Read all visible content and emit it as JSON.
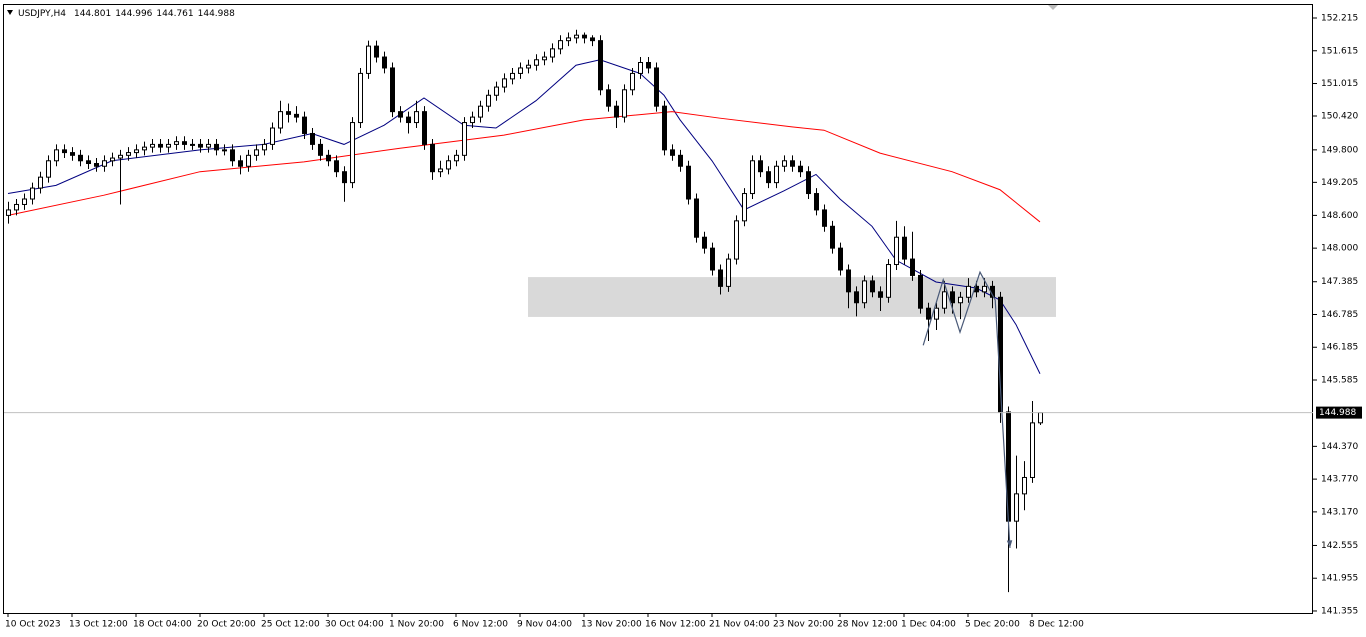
{
  "chart_data": {
    "type": "candlestick",
    "symbol": "USDJPY,H4",
    "ylim": [
      141.318,
      152.453
    ],
    "yticks": [
      152.215,
      151.615,
      151.015,
      {
        "value": 150.42,
        "label": "150.420"
      },
      {
        "value": 149.8,
        "label": "149.800"
      },
      149.205,
      {
        "value": 148.6,
        "label": "148.600"
      },
      {
        "value": 148,
        "label": "148.000"
      },
      147.385,
      146.785,
      146.185,
      145.585,
      {
        "value": 144.37,
        "label": "144.370"
      },
      {
        "value": 143.77,
        "label": "143.770"
      },
      {
        "value": 143.17,
        "label": "143.170"
      },
      142.555,
      141.955,
      141.355
    ],
    "categories": [
      "10 Oct 2023",
      "13 Oct 12:00",
      "18 Oct 04:00",
      "20 Oct 20:00",
      "25 Oct 12:00",
      "30 Oct 04:00",
      "1 Nov 20:00",
      "6 Nov 12:00",
      "9 Nov 04:00",
      "13 Nov 20:00",
      "16 Nov 12:00",
      "21 Nov 04:00",
      "23 Nov 20:00",
      "28 Nov 12:00",
      "1 Dec 04:00",
      "5 Dec 20:00",
      "8 Dec 12:00"
    ],
    "bull_color": "#ffffff",
    "bear_color": "#000000",
    "candles": [
      [
        148.6,
        148.85,
        148.45,
        148.7
      ],
      [
        148.7,
        148.9,
        148.6,
        148.8
      ],
      [
        148.8,
        149.0,
        148.7,
        148.9
      ],
      [
        148.9,
        149.2,
        148.8,
        149.1
      ],
      [
        149.1,
        149.4,
        149.0,
        149.3
      ],
      [
        149.3,
        149.7,
        149.2,
        149.6
      ],
      [
        149.6,
        149.9,
        149.5,
        149.8
      ],
      [
        149.8,
        149.9,
        149.65,
        149.75
      ],
      [
        149.75,
        149.85,
        149.6,
        149.7
      ],
      [
        149.7,
        149.8,
        149.5,
        149.6
      ],
      [
        149.6,
        149.7,
        149.45,
        149.55
      ],
      [
        149.55,
        149.65,
        149.4,
        149.5
      ],
      [
        149.5,
        149.7,
        149.4,
        149.6
      ],
      [
        149.6,
        149.75,
        149.5,
        149.65
      ],
      [
        149.65,
        149.8,
        148.8,
        149.7
      ],
      [
        149.7,
        149.85,
        149.6,
        149.75
      ],
      [
        149.75,
        149.9,
        149.65,
        149.8
      ],
      [
        149.8,
        149.95,
        149.7,
        149.85
      ],
      [
        149.85,
        150.0,
        149.75,
        149.9
      ],
      [
        149.9,
        150.0,
        149.75,
        149.85
      ],
      [
        149.85,
        150.0,
        149.75,
        149.9
      ],
      [
        149.9,
        150.05,
        149.8,
        149.95
      ],
      [
        149.95,
        150.05,
        149.8,
        149.9
      ],
      [
        149.9,
        150.0,
        149.8,
        149.9
      ],
      [
        149.9,
        150.0,
        149.75,
        149.85
      ],
      [
        149.85,
        150.0,
        149.75,
        149.9
      ],
      [
        149.9,
        150.0,
        149.7,
        149.8
      ],
      [
        149.8,
        149.9,
        149.7,
        149.8
      ],
      [
        149.8,
        149.9,
        149.5,
        149.6
      ],
      [
        149.6,
        149.7,
        149.35,
        149.5
      ],
      [
        149.5,
        149.8,
        149.4,
        149.7
      ],
      [
        149.7,
        149.9,
        149.6,
        149.8
      ],
      [
        149.8,
        150.0,
        149.7,
        149.9
      ],
      [
        149.9,
        150.3,
        149.8,
        150.2
      ],
      [
        150.2,
        150.7,
        150.1,
        150.5
      ],
      [
        150.5,
        150.65,
        150.3,
        150.45
      ],
      [
        150.45,
        150.6,
        150.3,
        150.4
      ],
      [
        150.4,
        150.5,
        150.0,
        150.1
      ],
      [
        150.1,
        150.2,
        149.8,
        149.9
      ],
      [
        149.9,
        150.0,
        149.6,
        149.7
      ],
      [
        149.7,
        149.8,
        149.5,
        149.6
      ],
      [
        149.6,
        149.7,
        149.3,
        149.4
      ],
      [
        149.4,
        149.5,
        148.85,
        149.2
      ],
      [
        149.2,
        150.4,
        149.1,
        150.3
      ],
      [
        150.3,
        151.3,
        150.2,
        151.2
      ],
      [
        151.2,
        151.8,
        151.1,
        151.7
      ],
      [
        151.7,
        151.8,
        151.4,
        151.5
      ],
      [
        151.5,
        151.6,
        151.2,
        151.3
      ],
      [
        151.3,
        151.4,
        150.4,
        150.5
      ],
      [
        150.5,
        150.6,
        150.3,
        150.4
      ],
      [
        150.4,
        150.5,
        150.1,
        150.3
      ],
      [
        150.3,
        150.7,
        150.2,
        150.5
      ],
      [
        150.5,
        150.6,
        149.8,
        149.9
      ],
      [
        149.9,
        150.0,
        149.25,
        149.4
      ],
      [
        149.4,
        149.6,
        149.3,
        149.45
      ],
      [
        149.45,
        149.7,
        149.35,
        149.6
      ],
      [
        149.6,
        149.8,
        149.5,
        149.7
      ],
      [
        149.7,
        150.4,
        149.6,
        150.3
      ],
      [
        150.3,
        150.5,
        150.2,
        150.4
      ],
      [
        150.4,
        150.7,
        150.3,
        150.6
      ],
      [
        150.6,
        150.9,
        150.5,
        150.8
      ],
      [
        150.8,
        151.05,
        150.7,
        150.95
      ],
      [
        150.95,
        151.2,
        150.85,
        151.1
      ],
      [
        151.1,
        151.3,
        151.0,
        151.2
      ],
      [
        151.2,
        151.4,
        151.1,
        151.3
      ],
      [
        151.3,
        151.45,
        151.2,
        151.35
      ],
      [
        151.35,
        151.55,
        151.25,
        151.45
      ],
      [
        151.45,
        151.6,
        151.35,
        151.5
      ],
      [
        151.5,
        151.75,
        151.4,
        151.65
      ],
      [
        151.65,
        151.9,
        151.55,
        151.8
      ],
      [
        151.8,
        151.95,
        151.7,
        151.85
      ],
      [
        151.85,
        152.0,
        151.75,
        151.9
      ],
      [
        151.9,
        151.95,
        151.75,
        151.85
      ],
      [
        151.85,
        151.9,
        151.7,
        151.8
      ],
      [
        151.8,
        151.9,
        150.8,
        150.9
      ],
      [
        150.9,
        151.0,
        150.5,
        150.6
      ],
      [
        150.6,
        150.7,
        150.2,
        150.4
      ],
      [
        150.4,
        151.0,
        150.3,
        150.9
      ],
      [
        150.9,
        151.3,
        150.8,
        151.2
      ],
      [
        151.2,
        151.5,
        151.1,
        151.4
      ],
      [
        151.4,
        151.5,
        151.2,
        151.3
      ],
      [
        151.3,
        151.4,
        150.5,
        150.6
      ],
      [
        150.6,
        150.7,
        149.7,
        149.8
      ],
      [
        149.8,
        149.9,
        149.6,
        149.7
      ],
      [
        149.7,
        149.8,
        149.4,
        149.5
      ],
      [
        149.5,
        149.6,
        148.8,
        148.9
      ],
      [
        148.9,
        149.0,
        148.1,
        148.2
      ],
      [
        148.2,
        148.3,
        147.9,
        148.0
      ],
      [
        148.0,
        148.1,
        147.5,
        147.6
      ],
      [
        147.6,
        147.7,
        147.15,
        147.3
      ],
      [
        147.3,
        147.9,
        147.2,
        147.8
      ],
      [
        147.8,
        148.6,
        147.7,
        148.5
      ],
      [
        148.5,
        149.1,
        148.4,
        149.0
      ],
      [
        149.0,
        149.7,
        148.9,
        149.6
      ],
      [
        149.6,
        149.7,
        149.3,
        149.4
      ],
      [
        149.4,
        149.5,
        149.1,
        149.2
      ],
      [
        149.2,
        149.6,
        149.1,
        149.5
      ],
      [
        149.5,
        149.7,
        149.4,
        149.6
      ],
      [
        149.6,
        149.7,
        149.4,
        149.5
      ],
      [
        149.5,
        149.6,
        149.3,
        149.4
      ],
      [
        149.4,
        149.5,
        148.9,
        149.0
      ],
      [
        149.0,
        149.1,
        148.6,
        148.7
      ],
      [
        148.7,
        148.8,
        148.3,
        148.4
      ],
      [
        148.4,
        148.5,
        147.9,
        148.0
      ],
      [
        148.0,
        148.1,
        147.5,
        147.6
      ],
      [
        147.6,
        147.7,
        146.9,
        147.2
      ],
      [
        147.2,
        147.3,
        146.75,
        147.0
      ],
      [
        147.0,
        147.5,
        146.9,
        147.4
      ],
      [
        147.4,
        147.5,
        147.1,
        147.2
      ],
      [
        147.2,
        147.3,
        146.85,
        147.1
      ],
      [
        147.1,
        147.8,
        147.0,
        147.7
      ],
      [
        147.7,
        148.5,
        147.6,
        148.2
      ],
      [
        148.2,
        148.4,
        147.7,
        147.8
      ],
      [
        147.8,
        148.3,
        147.4,
        147.5
      ],
      [
        147.5,
        147.6,
        146.8,
        146.9
      ],
      [
        146.9,
        147.0,
        146.3,
        146.7
      ],
      [
        146.7,
        147.0,
        146.5,
        146.9
      ],
      [
        146.9,
        147.4,
        146.8,
        147.2
      ],
      [
        147.2,
        147.3,
        146.8,
        147.0
      ],
      [
        147.0,
        147.2,
        146.7,
        147.1
      ],
      [
        147.1,
        147.45,
        147.0,
        147.3
      ],
      [
        147.3,
        147.4,
        147.1,
        147.2
      ],
      [
        147.2,
        147.45,
        147.1,
        147.3
      ],
      [
        147.3,
        147.4,
        146.9,
        147.1
      ],
      [
        147.1,
        147.2,
        144.8,
        145.0
      ],
      [
        145.0,
        145.1,
        141.7,
        143.0
      ],
      [
        143.0,
        144.2,
        142.5,
        143.5
      ],
      [
        143.5,
        144.1,
        143.2,
        143.8
      ],
      [
        143.8,
        145.2,
        143.7,
        144.8
      ],
      [
        144.801,
        144.996,
        144.761,
        144.988
      ]
    ],
    "moving_averages": [
      {
        "color": "#000080",
        "x": [
          0,
          6,
          13,
          24,
          32,
          38,
          42,
          47,
          52,
          57,
          61,
          66,
          71,
          74,
          79,
          82,
          84,
          88,
          92,
          97,
          101,
          104,
          108,
          111,
          116,
          121,
          124,
          126,
          129
        ],
        "values": [
          149.0,
          149.15,
          149.6,
          149.8,
          149.9,
          150.1,
          149.9,
          150.25,
          150.75,
          150.25,
          150.2,
          150.7,
          151.35,
          151.45,
          151.2,
          150.8,
          150.35,
          149.6,
          148.7,
          149.05,
          149.35,
          148.9,
          148.4,
          147.78,
          147.38,
          147.27,
          147.05,
          146.6,
          145.7
        ]
      },
      {
        "color": "#ff0000",
        "x": [
          0,
          12,
          24,
          37,
          49,
          62,
          72,
          83,
          89,
          98,
          102,
          109,
          118,
          124,
          129
        ],
        "values": [
          148.6,
          148.97,
          149.4,
          149.58,
          149.83,
          150.07,
          150.35,
          150.5,
          150.38,
          150.22,
          150.16,
          149.74,
          149.4,
          149.07,
          148.48
        ]
      }
    ],
    "zone": {
      "x": [
        65,
        131
      ],
      "y": [
        146.74,
        147.47
      ],
      "color": "#d9d9d9"
    },
    "trendline": {
      "x": [
        114.4,
        116.9,
        119,
        121.5,
        123.4,
        125.25
      ],
      "values": [
        146.22,
        147.42,
        146.46,
        147.56,
        147.05,
        142.51
      ],
      "color": "#4a5a78"
    }
  }
}
